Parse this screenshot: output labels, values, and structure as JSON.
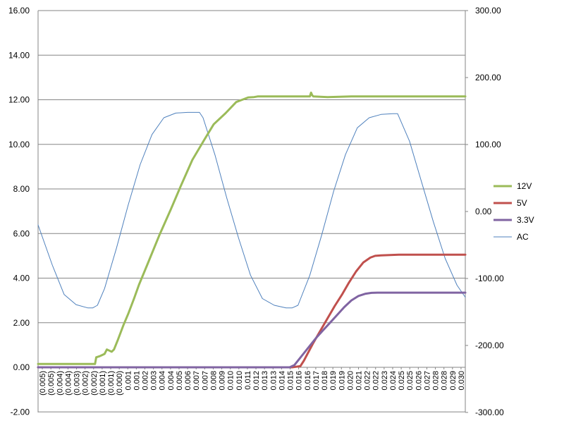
{
  "chart_data": {
    "type": "line",
    "title": "",
    "xlabel": "",
    "ylabel": "",
    "y2label": "",
    "grid": "horizontal",
    "legend_position": "right",
    "ylim": [
      -2,
      16
    ],
    "y2lim": [
      -300,
      300
    ],
    "y_ticks": [
      "-2.00",
      "0.00",
      "2.00",
      "4.00",
      "6.00",
      "8.00",
      "10.00",
      "12.00",
      "14.00",
      "16.00"
    ],
    "y2_ticks": [
      "-300.00",
      "-200.00",
      "-100.00",
      "0.00",
      "100.00",
      "200.00",
      "300.00"
    ],
    "x_ticks": [
      "(0.005)",
      "(0.005)",
      "(0.004)",
      "(0.004)",
      "(0.003)",
      "(0.002)",
      "(0.002)",
      "(0.001)",
      "(0.001)",
      "(0.000)",
      "0.001",
      "0.001",
      "0.002",
      "0.003",
      "0.004",
      "0.004",
      "0.005",
      "0.006",
      "0.007",
      "0.007",
      "0.008",
      "0.009",
      "0.010",
      "0.010",
      "0.011",
      "0.012",
      "0.013",
      "0.013",
      "0.014",
      "0.015",
      "0.016",
      "0.016",
      "0.017",
      "0.018",
      "0.019",
      "0.019",
      "0.020",
      "0.021",
      "0.022",
      "0.022",
      "0.023",
      "0.024",
      "0.025",
      "0.025",
      "0.026",
      "0.027",
      "0.028",
      "0.028",
      "0.029",
      "0.030"
    ],
    "xlim": [
      -0.0054,
      0.0306
    ],
    "series": [
      {
        "name": "12V",
        "color": "#9bbb59",
        "axis": "left",
        "width": 3,
        "x": [
          -0.0054,
          -0.002,
          -0.0006,
          -0.0005,
          -0.0002,
          0.0,
          0.0002,
          0.0004,
          0.0006,
          0.0008,
          0.001,
          0.0013,
          0.0018,
          0.0022,
          0.0027,
          0.0031,
          0.0038,
          0.0048,
          0.0058,
          0.0066,
          0.0076,
          0.0086,
          0.0094,
          0.0104,
          0.0113,
          0.0118,
          0.0123,
          0.0128,
          0.0131,
          0.0135,
          0.0145,
          0.0165,
          0.0175,
          0.0176,
          0.0177,
          0.0178,
          0.019,
          0.021,
          0.023,
          0.025,
          0.0306
        ],
        "y": [
          0.15,
          0.15,
          0.15,
          0.45,
          0.5,
          0.55,
          0.6,
          0.8,
          0.75,
          0.7,
          0.8,
          1.2,
          1.9,
          2.4,
          3.1,
          3.7,
          4.6,
          5.9,
          7.1,
          8.1,
          9.3,
          10.2,
          10.9,
          11.4,
          11.9,
          12.0,
          12.1,
          12.12,
          12.15,
          12.15,
          12.15,
          12.15,
          12.15,
          12.32,
          12.2,
          12.15,
          12.12,
          12.15,
          12.15,
          12.15,
          12.15
        ]
      },
      {
        "name": "5V",
        "color": "#c0504d",
        "axis": "left",
        "width": 3,
        "x": [
          -0.0054,
          0.016,
          0.0167,
          0.017,
          0.0173,
          0.0178,
          0.0184,
          0.019,
          0.0196,
          0.0202,
          0.0208,
          0.0214,
          0.022,
          0.0226,
          0.023,
          0.0235,
          0.025,
          0.0306
        ],
        "y": [
          0.0,
          0.0,
          0.05,
          0.3,
          0.6,
          1.1,
          1.65,
          2.2,
          2.75,
          3.25,
          3.8,
          4.3,
          4.7,
          4.92,
          5.0,
          5.02,
          5.05,
          5.05
        ]
      },
      {
        "name": "3.3V",
        "color": "#8064a2",
        "axis": "left",
        "width": 3,
        "x": [
          -0.0054,
          0.0158,
          0.0162,
          0.0168,
          0.0174,
          0.018,
          0.0186,
          0.0192,
          0.0198,
          0.0204,
          0.021,
          0.0216,
          0.0222,
          0.0227,
          0.0232,
          0.0238,
          0.025,
          0.0306
        ],
        "y": [
          0.0,
          0.0,
          0.1,
          0.5,
          0.9,
          1.3,
          1.65,
          2.0,
          2.35,
          2.7,
          3.0,
          3.2,
          3.3,
          3.34,
          3.35,
          3.35,
          3.35,
          3.35
        ]
      },
      {
        "name": "AC",
        "color": "#4f81bd",
        "axis": "right",
        "width": 1,
        "x": [
          -0.0054,
          -0.0042,
          -0.0032,
          -0.0022,
          -0.0012,
          -0.0008,
          -0.0004,
          0.0002,
          0.0012,
          0.0022,
          0.0032,
          0.0042,
          0.0052,
          0.0062,
          0.0072,
          0.0082,
          0.0085,
          0.0095,
          0.0105,
          0.0115,
          0.0125,
          0.0135,
          0.0145,
          0.0155,
          0.016,
          0.0165,
          0.0175,
          0.0185,
          0.0195,
          0.0205,
          0.0215,
          0.0225,
          0.0235,
          0.0245,
          0.0249,
          0.0259,
          0.0269,
          0.0279,
          0.0289,
          0.0299,
          0.0306
        ],
        "y": [
          -20,
          -80,
          -124,
          -139,
          -144,
          -144,
          -140,
          -115,
          -55,
          10,
          70,
          115,
          140,
          147,
          148,
          148,
          140,
          85,
          20,
          -40,
          -95,
          -130,
          -140,
          -144,
          -144,
          -140,
          -95,
          -35,
          30,
          85,
          125,
          140,
          145,
          146,
          146,
          105,
          45,
          -15,
          -70,
          -110,
          -128
        ]
      }
    ]
  }
}
